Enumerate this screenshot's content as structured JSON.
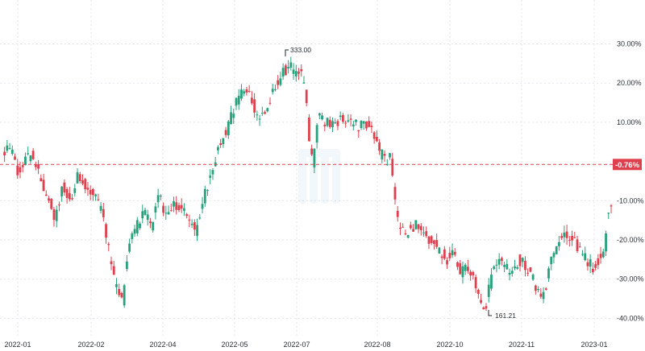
{
  "chart_data": {
    "type": "candlestick",
    "y_unit": "percent change",
    "ylim": [
      -44,
      36
    ],
    "y_ticks": [
      {
        "value": 30,
        "label": "30.00%"
      },
      {
        "value": 20,
        "label": "20.00%"
      },
      {
        "value": 10,
        "label": "10.00%"
      },
      {
        "value": -10,
        "label": "-10.00%"
      },
      {
        "value": -20,
        "label": "-20.00%"
      },
      {
        "value": -30,
        "label": "-30.00%"
      },
      {
        "value": -40,
        "label": "-40.00%"
      }
    ],
    "x_ticks": [
      "2022-01",
      "2022-02",
      "2022-04",
      "2022-05",
      "2022-07",
      "2022-08",
      "2022-10",
      "2022-11",
      "2023-01"
    ],
    "reference_line": {
      "value": -0.76,
      "label": "-0.76%"
    },
    "annotations": [
      {
        "label": "333.00",
        "value": 27.5,
        "kind": "high"
      },
      {
        "label": "161.21",
        "value": -38.6,
        "kind": "low"
      }
    ],
    "colors": {
      "up": "#26a17b",
      "down": "#e0404e",
      "grid": "#e3e6eb",
      "reference": "#e0404e"
    },
    "grid": true,
    "series_key_points": [
      [
        0,
        2
      ],
      [
        6,
        3
      ],
      [
        11,
        -3
      ],
      [
        16,
        0
      ],
      [
        22,
        2
      ],
      [
        28,
        -4
      ],
      [
        34,
        -9
      ],
      [
        40,
        -15
      ],
      [
        46,
        -6
      ],
      [
        52,
        -10
      ],
      [
        58,
        -3
      ],
      [
        64,
        -6
      ],
      [
        70,
        -9
      ],
      [
        76,
        -12
      ],
      [
        80,
        -21
      ],
      [
        84,
        -28
      ],
      [
        88,
        -33
      ],
      [
        92,
        -36
      ],
      [
        96,
        -22
      ],
      [
        102,
        -17
      ],
      [
        108,
        -13
      ],
      [
        114,
        -16
      ],
      [
        120,
        -9
      ],
      [
        126,
        -14
      ],
      [
        132,
        -11
      ],
      [
        138,
        -12
      ],
      [
        144,
        -15
      ],
      [
        148,
        -19
      ],
      [
        152,
        -12
      ],
      [
        156,
        -7
      ],
      [
        160,
        -2
      ],
      [
        166,
        4
      ],
      [
        172,
        8
      ],
      [
        178,
        14
      ],
      [
        184,
        18
      ],
      [
        190,
        17
      ],
      [
        196,
        11
      ],
      [
        202,
        13
      ],
      [
        208,
        18
      ],
      [
        212,
        21
      ],
      [
        216,
        23
      ],
      [
        220,
        25
      ],
      [
        224,
        21
      ],
      [
        228,
        23
      ],
      [
        232,
        18
      ],
      [
        234,
        11
      ],
      [
        236,
        2
      ],
      [
        238,
        0
      ],
      [
        242,
        11
      ],
      [
        248,
        10
      ],
      [
        254,
        9
      ],
      [
        260,
        11
      ],
      [
        266,
        11
      ],
      [
        272,
        9
      ],
      [
        278,
        10
      ],
      [
        284,
        8
      ],
      [
        290,
        2
      ],
      [
        294,
        0
      ],
      [
        298,
        1
      ],
      [
        300,
        -8
      ],
      [
        304,
        -17
      ],
      [
        310,
        -18
      ],
      [
        316,
        -16
      ],
      [
        322,
        -19
      ],
      [
        328,
        -20
      ],
      [
        334,
        -22
      ],
      [
        340,
        -25
      ],
      [
        346,
        -24
      ],
      [
        352,
        -28
      ],
      [
        358,
        -27
      ],
      [
        362,
        -30
      ],
      [
        366,
        -34
      ],
      [
        370,
        -38
      ],
      [
        374,
        -31
      ],
      [
        378,
        -25
      ],
      [
        384,
        -26
      ],
      [
        390,
        -28
      ],
      [
        396,
        -25
      ],
      [
        402,
        -27
      ],
      [
        408,
        -31
      ],
      [
        414,
        -35
      ],
      [
        418,
        -30
      ],
      [
        422,
        -24
      ],
      [
        426,
        -21
      ],
      [
        430,
        -19
      ],
      [
        436,
        -20
      ],
      [
        442,
        -22
      ],
      [
        448,
        -25
      ],
      [
        454,
        -27
      ],
      [
        458,
        -25
      ],
      [
        462,
        -22
      ],
      [
        464,
        -14
      ],
      [
        466,
        -12
      ]
    ]
  }
}
